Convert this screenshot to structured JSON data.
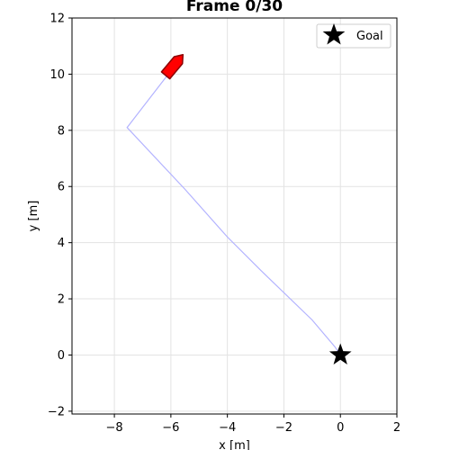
{
  "chart_data": {
    "type": "line",
    "title": "Frame 0/30",
    "xlabel": "x [m]",
    "ylabel": "y [m]",
    "xlim": [
      -9.5,
      2.0
    ],
    "ylim": [
      -2.1,
      12.0
    ],
    "xticks": [
      -8,
      -6,
      -4,
      -2,
      0,
      2
    ],
    "yticks": [
      -2,
      0,
      2,
      4,
      6,
      8,
      10,
      12
    ],
    "xtick_labels": [
      "−8",
      "−6",
      "−4",
      "−2",
      "0",
      "2"
    ],
    "ytick_labels": [
      "−2",
      "0",
      "2",
      "4",
      "6",
      "8",
      "10",
      "12"
    ],
    "grid": true,
    "legend_position": "top-right",
    "series": [
      {
        "kind": "path",
        "color": "#b3b3ff",
        "x": [
          -5.9,
          -7.55,
          -5.5,
          -4.0,
          -2.8,
          -1.0,
          -0.2,
          0.0
        ],
        "y": [
          10.25,
          8.1,
          5.9,
          4.2,
          3.0,
          1.25,
          0.3,
          0.0
        ]
      },
      {
        "name": "Goal",
        "kind": "marker",
        "marker": "star",
        "color": "#000000",
        "x": [
          0.0
        ],
        "y": [
          0.0
        ]
      },
      {
        "kind": "vehicle",
        "marker": "arrow",
        "color": "#ff0000",
        "edge_color": "#8b0000",
        "x": [
          -5.9
        ],
        "y": [
          10.3
        ],
        "heading_deg": 50
      }
    ],
    "legend": [
      {
        "label": "Goal",
        "marker": "star"
      }
    ]
  }
}
